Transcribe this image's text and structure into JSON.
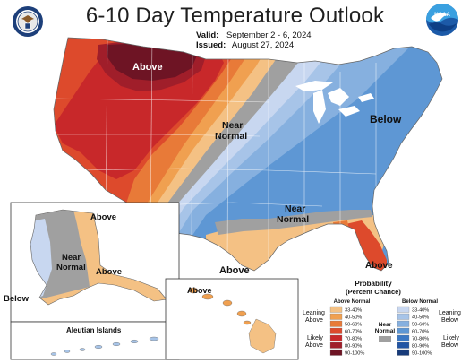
{
  "title": "6-10 Day Temperature Outlook",
  "valid_label": "Valid:",
  "valid_value": "September 2 - 6, 2024",
  "issued_label": "Issued:",
  "issued_value": "August 27, 2024",
  "logos": {
    "left": {
      "icon": "department-of-commerce-seal"
    },
    "right": {
      "icon": "noaa-logo",
      "text": "NOAA"
    }
  },
  "map": {
    "labels": {
      "above_nw": "Above",
      "near_normal_1_line1": "Near",
      "near_normal_1_line2": "Normal",
      "below_ne": "Below",
      "near_normal_2_line1": "Near",
      "near_normal_2_line2": "Normal",
      "above_south": "Above",
      "above_fl": "Above"
    }
  },
  "alaska": {
    "labels": {
      "above_north": "Above",
      "near_normal_line1": "Near",
      "near_normal_line2": "Normal",
      "above_south": "Above",
      "below": "Below"
    },
    "aleutian_label": "Aleutian Islands"
  },
  "hawaii": {
    "label": "Above"
  },
  "legend": {
    "title_line1": "Probability",
    "title_line2": "(Percent Chance)",
    "above_header": "Above Normal",
    "below_header": "Below Normal",
    "near_normal_line1": "Near",
    "near_normal_line2": "Normal",
    "leaning_above_line1": "Leaning",
    "leaning_above_line2": "Above",
    "likely_above_line1": "Likely",
    "likely_above_line2": "Above",
    "leaning_below_line1": "Leaning",
    "leaning_below_line2": "Below",
    "likely_below_line1": "Likely",
    "likely_below_line2": "Below",
    "above_ranges": [
      "33-40%",
      "40-50%",
      "50-60%",
      "60-70%",
      "70-80%",
      "80-90%",
      "90-100%"
    ],
    "below_ranges": [
      "33-40%",
      "40-50%",
      "50-60%",
      "60-70%",
      "70-80%",
      "80-90%",
      "90-100%"
    ],
    "above_colors": [
      "#f4c184",
      "#f0a050",
      "#e87a38",
      "#dd4a2c",
      "#c8282a",
      "#a01e2a",
      "#6e1424"
    ],
    "below_colors": [
      "#c8d7f0",
      "#a7c4e8",
      "#86b0df",
      "#5e97d4",
      "#3b78c4",
      "#2255a4",
      "#173b7a"
    ],
    "near_color": "#a0a0a0"
  }
}
